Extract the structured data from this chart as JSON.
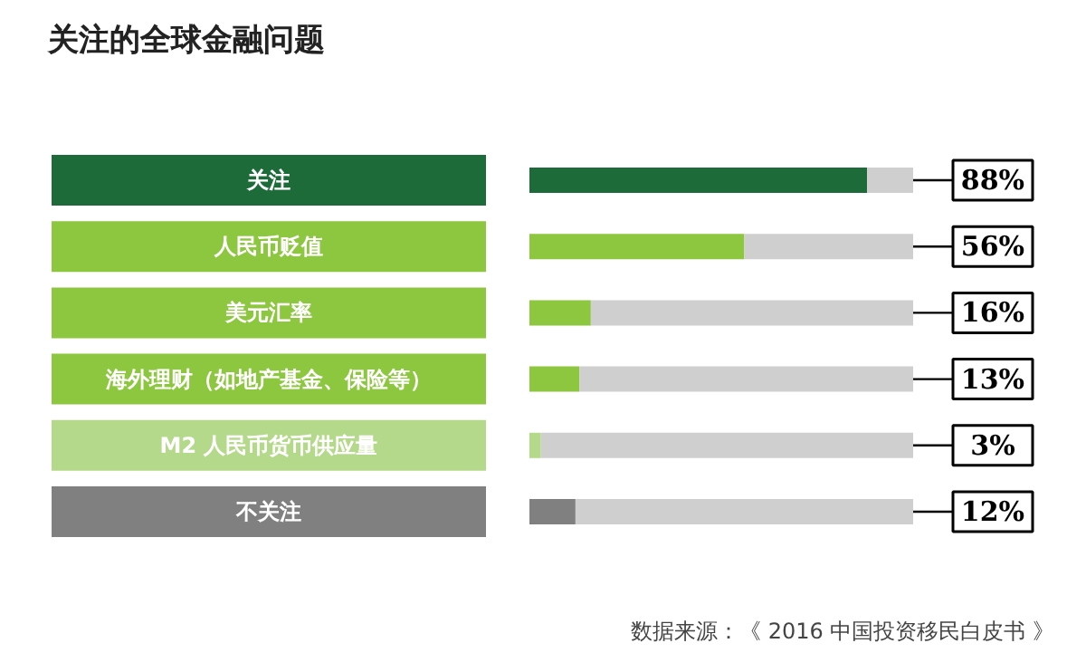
{
  "chart_data": {
    "type": "bar",
    "orientation": "horizontal",
    "stacked": true,
    "title": "关注的全球金融问题",
    "categories": [
      "关注",
      "人民币贬值",
      "美元汇率",
      "海外理财（如地产基金、保险等）",
      "M2 人民币货币供应量",
      "不关注"
    ],
    "series": [
      {
        "colors": [
          "#1e6b3a",
          "#8dc63f",
          "#8dc63f",
          "#8dc63f",
          "#b5d98a",
          "#808080"
        ],
        "values": [
          88,
          56,
          16,
          13,
          3,
          12
        ],
        "value_labels": [
          "88%",
          "56%",
          "16%",
          "13%",
          "3%",
          "12%"
        ]
      },
      {
        "color": "#cfcfcf",
        "values": [
          12,
          44,
          84,
          87,
          97,
          88
        ]
      }
    ],
    "annotations": [
      "数据来源：《 2016 中国投资移民白皮书 》"
    ]
  }
}
